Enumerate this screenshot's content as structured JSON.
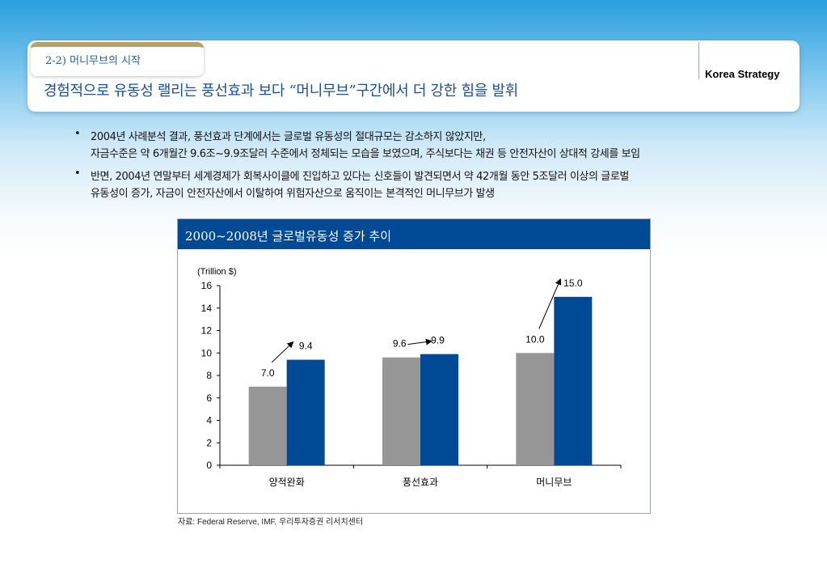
{
  "header": {
    "section_label": "2-2) 머니무브의 시작",
    "title": "경험적으로 유동성 랠리는 풍선효과 보다 “머니무브”구간에서 더 강한 힘을 발휘",
    "brand": "Korea Strategy"
  },
  "bullets": [
    {
      "marker": "•",
      "text": "2004년 사례분석 결과, 풍선효과 단계에서는 글로벌 유동성의 절대규모는 감소하지 않았지만,"
    },
    {
      "marker": "",
      "text": "자금수준은 약 6개월간 9.6조~9.9조달러 수준에서 정체되는 모습을 보였으며, 주식보다는 채권 등 안전자산이 상대적 강세를 보임"
    },
    {
      "marker": "•",
      "text": "반면, 2004년 연말부터 세계경제가 회복사이클에 진입하고 있다는 신호들이 발견되면서 약 42개월 동안 5조달러 이상의 글로벌"
    },
    {
      "marker": "",
      "text": "유동성이 증가, 자금이 안전자산에서 이탈하여 위험자산으로 움직이는 본격적인 머니무브가 발생"
    }
  ],
  "chart_data": {
    "type": "bar",
    "title": "2000~2008년 글로벌유동성 증가 추이",
    "ylabel": "(Trillion $)",
    "xlabel": "",
    "categories": [
      "양적완화",
      "풍선효과",
      "머니무브"
    ],
    "series": [
      {
        "values": [
          7.0,
          9.6,
          10.0
        ],
        "color": "#969696"
      },
      {
        "values": [
          9.4,
          9.9,
          15.0
        ],
        "color": "#004a95"
      }
    ],
    "data_labels": [
      [
        "7.0",
        "9.6",
        "10.0"
      ],
      [
        "9.4",
        "9.9",
        "15.0"
      ]
    ],
    "ylim": [
      0,
      16
    ],
    "yticks": [
      "0",
      "2",
      "4",
      "6",
      "8",
      "10",
      "12",
      "14",
      "16"
    ],
    "grid": false,
    "legend": "none",
    "annotations": "arrows from first bar value to second bar value in each group"
  },
  "source": "자료: Federal Reserve, IMF, 우리투자증권 리서치센터",
  "colors": {
    "accent_blue": "#004a95",
    "title_blue": "#1a4f94",
    "gray_bar": "#969696",
    "tab_gold": "#b5a06a"
  }
}
